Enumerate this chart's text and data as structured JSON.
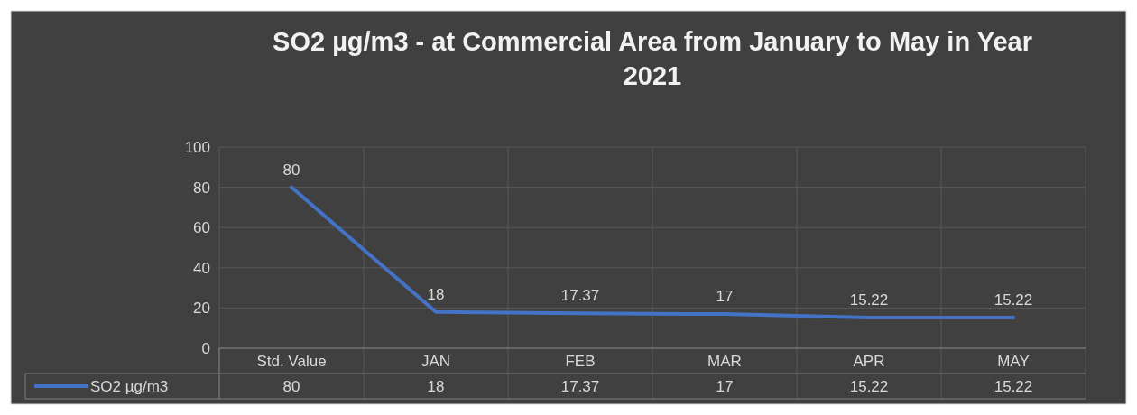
{
  "chart_data": {
    "type": "line",
    "title": "SO2 µg/m3 - at Commercial Area from January to May in Year 2021",
    "categories": [
      "Std. Value",
      "JAN",
      "FEB",
      "MAR",
      "APR",
      "MAY"
    ],
    "series": [
      {
        "name": "SO2 µg/m3",
        "color": "#4472c4",
        "values": [
          80,
          18,
          17.37,
          17,
          15.22,
          15.22
        ],
        "value_labels": [
          "80",
          "18",
          "17.37",
          "17",
          "15.22",
          "15.22"
        ]
      }
    ],
    "annotations": [
      "80",
      "18",
      "17.37",
      "17",
      "15.22",
      "15.22"
    ],
    "ylim": [
      0,
      100
    ],
    "yticks": [
      0,
      20,
      40,
      60,
      80,
      100
    ],
    "grid": true,
    "data_labels": true,
    "legend": "bottom",
    "marker": "none",
    "line_style": "solid"
  }
}
